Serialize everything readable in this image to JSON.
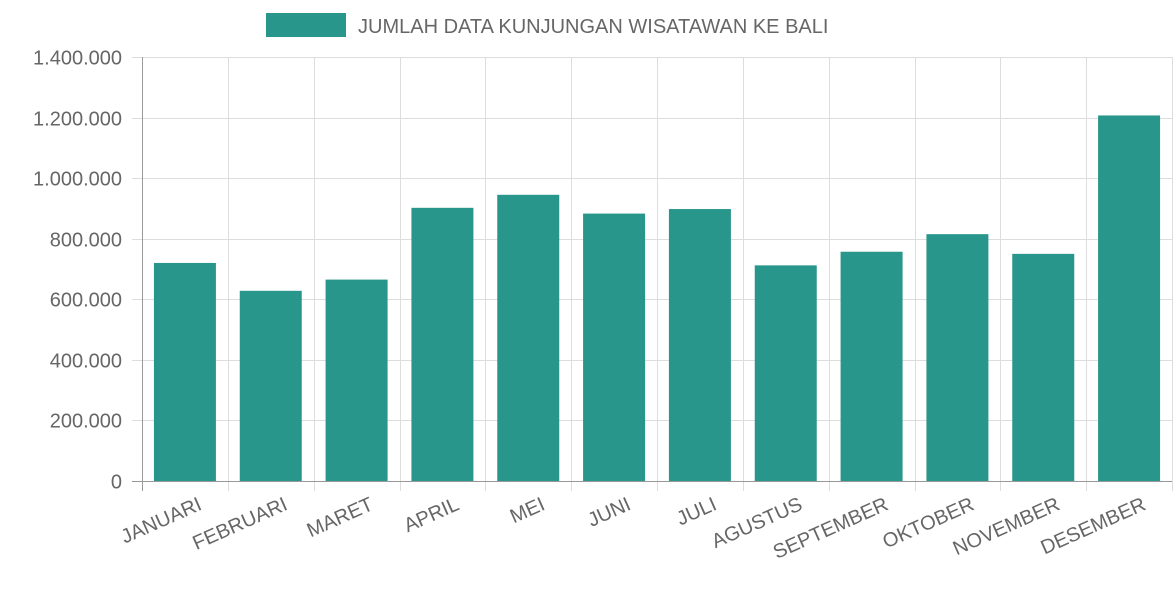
{
  "chart_data": {
    "type": "bar",
    "categories": [
      "JANUARI",
      "FEBRUARI",
      "MARET",
      "APRIL",
      "MEI",
      "JUNI",
      "JULI",
      "AGUSTUS",
      "SEPTEMBER",
      "OKTOBER",
      "NOVEMBER",
      "DESEMBER"
    ],
    "series": [
      {
        "name": "JUMLAH DATA KUNJUNGAN WISATAWAN KE BALI",
        "values": [
          720000,
          628000,
          665000,
          902000,
          945000,
          883000,
          898000,
          712000,
          757000,
          815000,
          750000,
          1207000
        ],
        "color": "#28968b"
      }
    ],
    "ylim": [
      0,
      1400000
    ],
    "yticks": [
      0,
      200000,
      400000,
      600000,
      800000,
      1000000,
      1200000,
      1400000
    ],
    "ytick_labels": [
      "0",
      "200.000",
      "400.000",
      "600.000",
      "800.000",
      "1.000.000",
      "1.200.000",
      "1.400.000"
    ],
    "grid": true,
    "legend_position": "top-center",
    "grid_color": "#dddddd",
    "axis_color": "#999999",
    "text_color": "#666666"
  }
}
